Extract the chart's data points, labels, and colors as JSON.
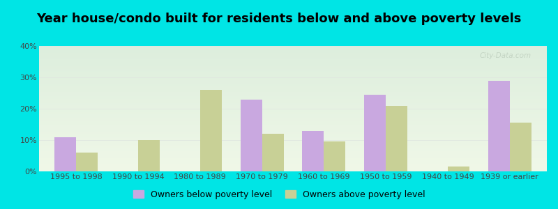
{
  "title": "Year house/condo built for residents below and above poverty levels",
  "categories": [
    "1995 to 1998",
    "1990 to 1994",
    "1980 to 1989",
    "1970 to 1979",
    "1960 to 1969",
    "1950 to 1959",
    "1940 to 1949",
    "1939 or earlier"
  ],
  "below_poverty": [
    11,
    0,
    0,
    23,
    13,
    24.5,
    0,
    29
  ],
  "above_poverty": [
    6,
    10,
    26,
    12,
    9.5,
    21,
    1.5,
    15.5
  ],
  "below_color": "#c9a8e0",
  "above_color": "#c8d096",
  "bg_color_outer": "#00e5e5",
  "grad_top": "#ddeedd",
  "grad_bottom": "#f0f8e8",
  "ylim": [
    0,
    40
  ],
  "yticks": [
    0,
    10,
    20,
    30,
    40
  ],
  "ytick_labels": [
    "0%",
    "10%",
    "20%",
    "30%",
    "40%"
  ],
  "legend_below": "Owners below poverty level",
  "legend_above": "Owners above poverty level",
  "title_fontsize": 13,
  "tick_fontsize": 8,
  "legend_fontsize": 9,
  "grid_color": "#e0e8e0",
  "text_color": "#444444",
  "watermark": "City-Data.com",
  "bar_width": 0.35
}
